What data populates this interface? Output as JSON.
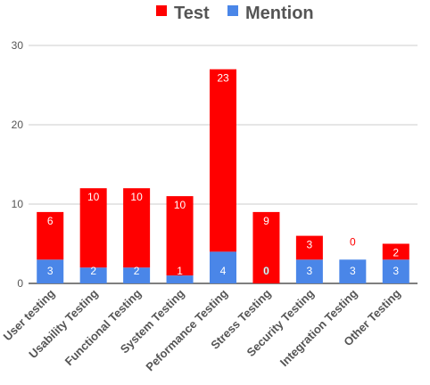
{
  "chart_data": {
    "type": "bar",
    "stacked": true,
    "title": "",
    "xlabel": "",
    "ylabel": "",
    "ylim": [
      0,
      30
    ],
    "yticks": [
      "0",
      "10",
      "20",
      "30"
    ],
    "grid": true,
    "legend_position": "top",
    "categories": [
      "User testing",
      "Usability Testing",
      "Functional Testing",
      "System Testing",
      "Peformance Testing",
      "Stress Testing",
      "Security Testing",
      "Integration Testing",
      "Other Testing"
    ],
    "series": [
      {
        "name": "Mention",
        "color": "#4a86e8",
        "values": [
          3,
          2,
          2,
          1,
          4,
          0,
          3,
          3,
          3
        ]
      },
      {
        "name": "Test",
        "color": "#ff0000",
        "values": [
          6,
          10,
          10,
          10,
          23,
          9,
          3,
          0,
          2
        ]
      }
    ]
  }
}
